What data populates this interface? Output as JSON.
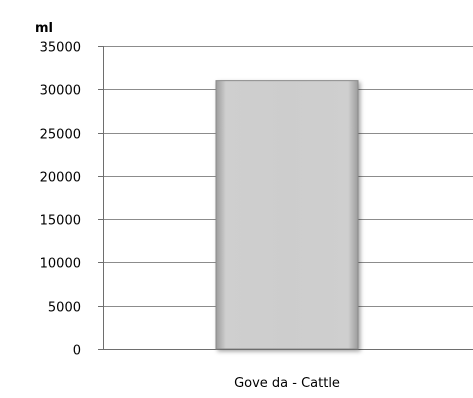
{
  "chart_data": {
    "type": "bar",
    "ylabel": "ml",
    "categories": [
      "Gove da - Cattle"
    ],
    "values": [
      31000
    ],
    "ylim": [
      0,
      35000
    ],
    "yticks": [
      0,
      5000,
      10000,
      15000,
      20000,
      25000,
      30000,
      35000
    ],
    "grid": true,
    "colors": {
      "bar_fill": "#c8c8c8",
      "bar_edge": "#8a8a8a",
      "grid": "#8c8c8c",
      "axis": "#6e6e6e"
    }
  }
}
